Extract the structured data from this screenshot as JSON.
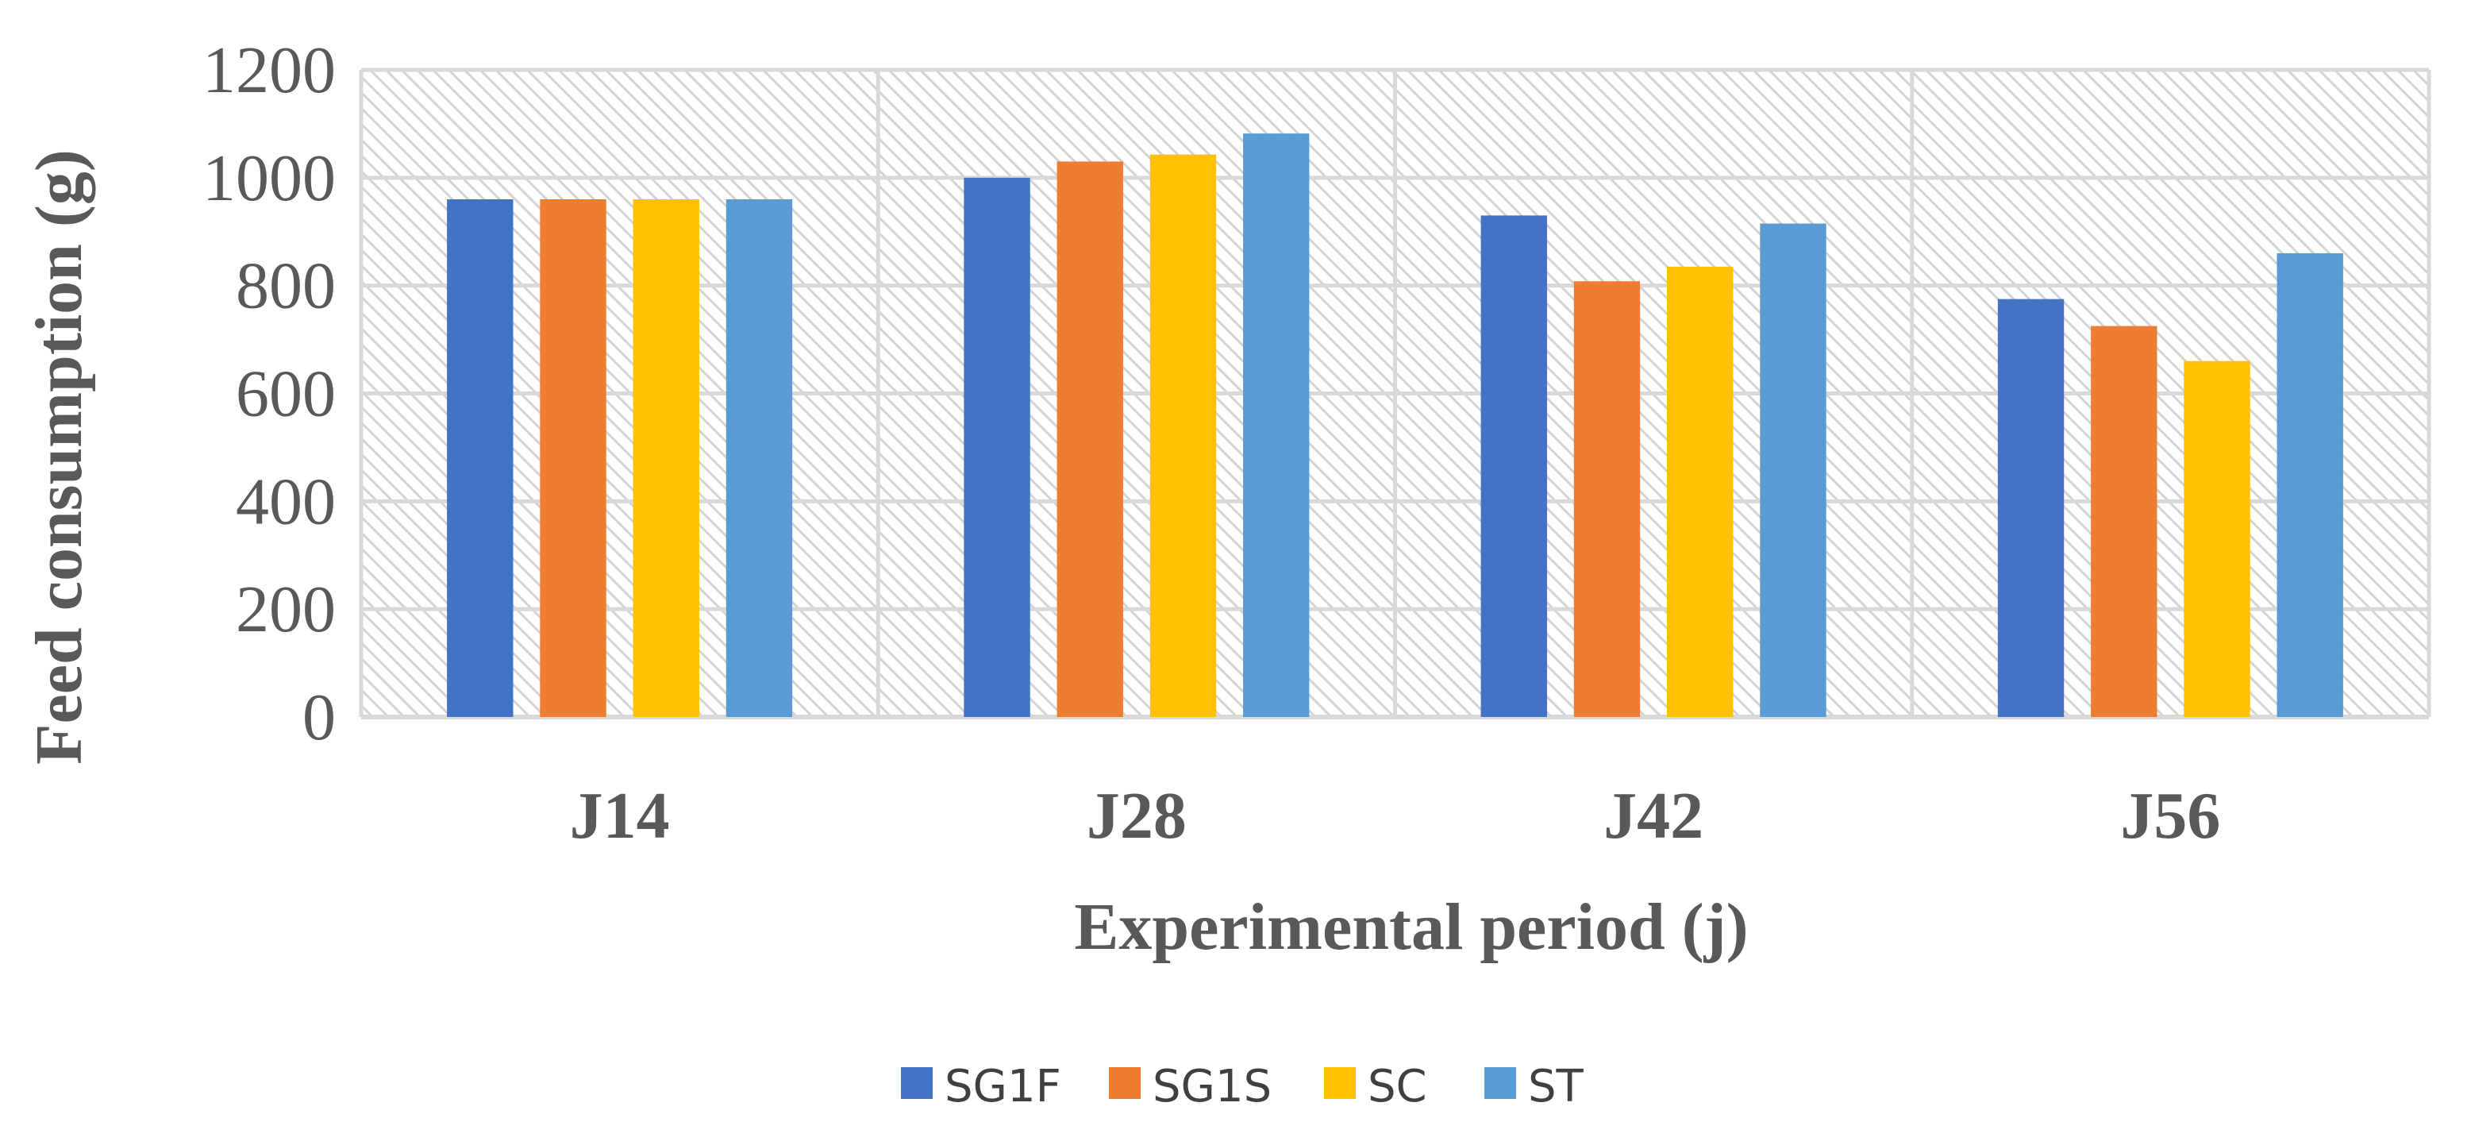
{
  "chart_data": {
    "type": "bar",
    "title": "",
    "xlabel": "Experimental period (j)",
    "ylabel": "Feed consumption (g)",
    "categories": [
      "J14",
      "J28",
      "J42",
      "J56"
    ],
    "series": [
      {
        "name": "SG1F",
        "color": "#4472C4",
        "values": [
          960,
          1000,
          930,
          775
        ]
      },
      {
        "name": "SG1S",
        "color": "#ED7D31",
        "values": [
          960,
          1030,
          808,
          725
        ]
      },
      {
        "name": "SC",
        "color": "#FFC000",
        "values": [
          960,
          1043,
          835,
          660
        ]
      },
      {
        "name": "ST",
        "color": "#5B9BD5",
        "values": [
          960,
          1082,
          915,
          860
        ]
      }
    ],
    "ylim": [
      0,
      1200
    ],
    "yticks": [
      "0",
      "200",
      "400",
      "600",
      "800",
      "1000",
      "1200"
    ],
    "grid": true,
    "plot_background": "diagonal-hatch light gray",
    "legend_position": "bottom"
  }
}
